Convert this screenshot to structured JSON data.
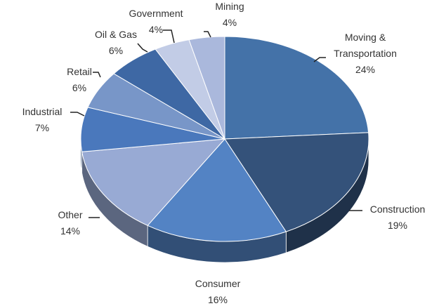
{
  "chart_data": {
    "type": "pie",
    "categories": [
      "Moving & Transportation",
      "Construction",
      "Consumer",
      "Other",
      "Industrial",
      "Retail",
      "Oil & Gas",
      "Government",
      "Mining"
    ],
    "values": [
      24,
      19,
      16,
      14,
      7,
      6,
      6,
      4,
      4
    ],
    "value_labels": [
      "24%",
      "19%",
      "16%",
      "14%",
      "7%",
      "6%",
      "6%",
      "4%",
      "4%"
    ],
    "colors": [
      "#4472a8",
      "#34527a",
      "#5383c4",
      "#98aad4",
      "#4a78bc",
      "#7896c8",
      "#3e68a4",
      "#c2cce6",
      "#aab8dc"
    ]
  }
}
